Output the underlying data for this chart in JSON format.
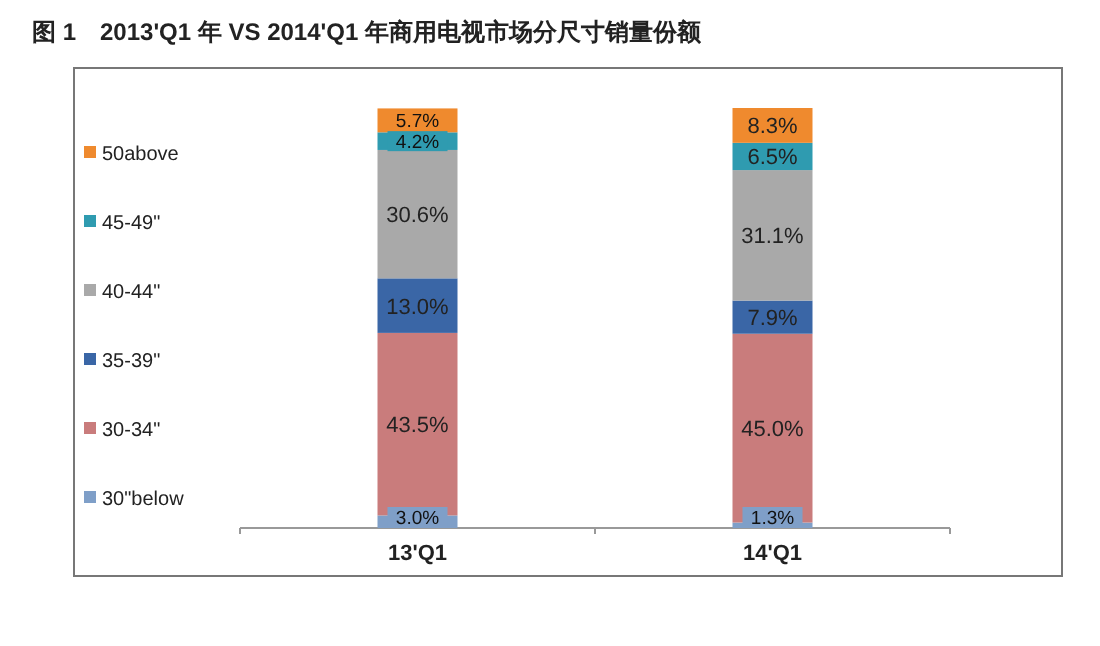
{
  "chart_data": {
    "type": "bar",
    "stacked": true,
    "title": "图 1　2013'Q1 年 VS 2014'Q1 年商用电视市场分尺寸销量份额",
    "categories": [
      "13'Q1",
      "14'Q1"
    ],
    "series": [
      {
        "name": "30\"below",
        "color": "#7f9fc8",
        "values": [
          3.0,
          1.3
        ],
        "value_labels": [
          "3.0%",
          "1.3%"
        ]
      },
      {
        "name": "30-34\"",
        "color": "#c97c7c",
        "values": [
          43.5,
          45.0
        ],
        "value_labels": [
          "43.5%",
          "45.0%"
        ]
      },
      {
        "name": "35-39\"",
        "color": "#3a66a6",
        "values": [
          13.0,
          7.9
        ],
        "value_labels": [
          "13.0%",
          "7.9%"
        ]
      },
      {
        "name": "40-44\"",
        "color": "#a9a9a9",
        "values": [
          30.6,
          31.1
        ],
        "value_labels": [
          "30.6%",
          "31.1%"
        ]
      },
      {
        "name": "45-49\"",
        "color": "#2f9bb0",
        "values": [
          4.2,
          6.5
        ],
        "value_labels": [
          "4.2%",
          "6.5%"
        ]
      },
      {
        "name": "50above",
        "color": "#ef8a2e",
        "values": [
          5.7,
          8.3
        ],
        "value_labels": [
          "5.7%",
          "8.3%"
        ]
      }
    ],
    "legend": "left"
  }
}
